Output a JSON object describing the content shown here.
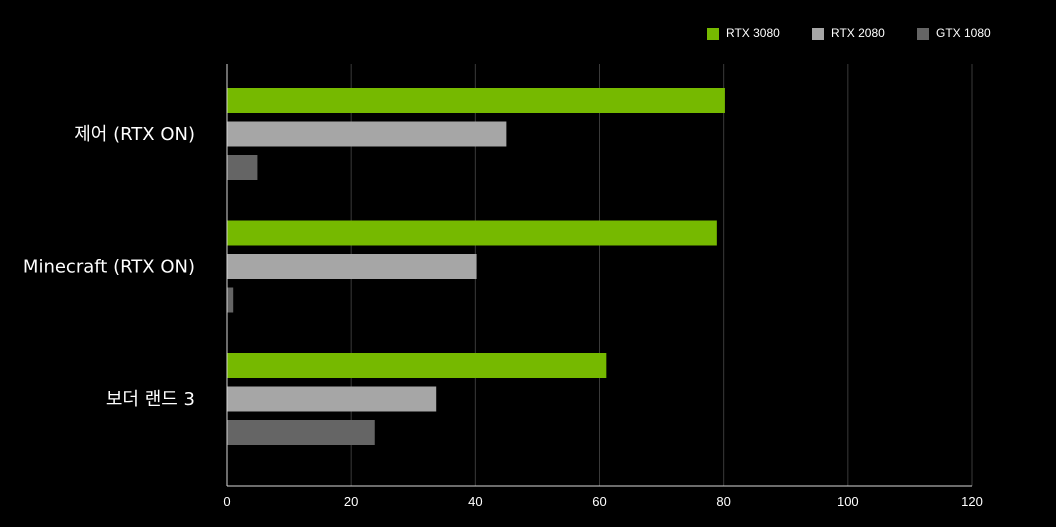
{
  "chart_data": {
    "type": "bar",
    "orientation": "horizontal",
    "categories": [
      "제어 (RTX ON)",
      "Minecraft (RTX ON)",
      "보더 랜드 3"
    ],
    "series": [
      {
        "name": "RTX 3080",
        "color": "#76b900",
        "values": [
          80.2,
          78.9,
          61.1
        ]
      },
      {
        "name": "RTX 2080",
        "color": "#a6a6a6",
        "values": [
          45,
          40.2,
          33.7
        ]
      },
      {
        "name": "GTX 1080",
        "color": "#656565",
        "values": [
          4.9,
          1,
          23.8
        ]
      }
    ],
    "xlim": [
      0,
      120
    ],
    "xticks": [
      "0",
      "20",
      "40",
      "60",
      "80",
      "100",
      "120"
    ],
    "grid": true,
    "legend_position": "top-right",
    "background": "#000000",
    "grid_color": "#3a3a3a",
    "axis_color": "#d9d9d9",
    "text_color": "#ffffff"
  }
}
